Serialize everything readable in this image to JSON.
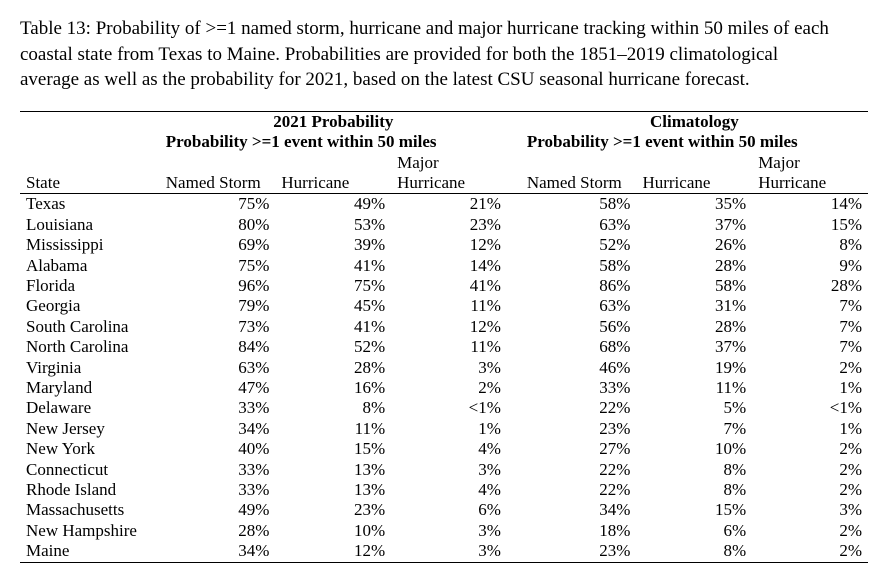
{
  "caption": "Table 13: Probability of >=1 named storm, hurricane and major hurricane tracking within 50 miles of each coastal state from Texas to Maine.  Probabilities are provided for both the 1851–2019 climatological average as well as the probability for 2021, based on the latest CSU seasonal hurricane forecast.",
  "table": {
    "type": "table",
    "font_family": "Times New Roman",
    "body_fontsize_pt": 13,
    "caption_fontsize_pt": 14,
    "background_color": "#ffffff",
    "text_color": "#000000",
    "border_color": "#000000",
    "group_headers": {
      "left": "2021 Probability",
      "right": "Climatology"
    },
    "sub_header": "Probability >=1 event within 50 miles",
    "columns": {
      "state": "State",
      "named_storm": "Named Storm",
      "hurricane": "Hurricane",
      "major_hurricane": "Major Hurricane"
    },
    "column_alignment": [
      "left",
      "right",
      "right",
      "right",
      "right",
      "right",
      "right"
    ],
    "rows": [
      {
        "state": "Texas",
        "p2021": {
          "ns": "75%",
          "h": "49%",
          "mh": "21%"
        },
        "clim": {
          "ns": "58%",
          "h": "35%",
          "mh": "14%"
        }
      },
      {
        "state": "Louisiana",
        "p2021": {
          "ns": "80%",
          "h": "53%",
          "mh": "23%"
        },
        "clim": {
          "ns": "63%",
          "h": "37%",
          "mh": "15%"
        }
      },
      {
        "state": "Mississippi",
        "p2021": {
          "ns": "69%",
          "h": "39%",
          "mh": "12%"
        },
        "clim": {
          "ns": "52%",
          "h": "26%",
          "mh": "8%"
        }
      },
      {
        "state": "Alabama",
        "p2021": {
          "ns": "75%",
          "h": "41%",
          "mh": "14%"
        },
        "clim": {
          "ns": "58%",
          "h": "28%",
          "mh": "9%"
        }
      },
      {
        "state": "Florida",
        "p2021": {
          "ns": "96%",
          "h": "75%",
          "mh": "41%"
        },
        "clim": {
          "ns": "86%",
          "h": "58%",
          "mh": "28%"
        }
      },
      {
        "state": "Georgia",
        "p2021": {
          "ns": "79%",
          "h": "45%",
          "mh": "11%"
        },
        "clim": {
          "ns": "63%",
          "h": "31%",
          "mh": "7%"
        }
      },
      {
        "state": "South Carolina",
        "p2021": {
          "ns": "73%",
          "h": "41%",
          "mh": "12%"
        },
        "clim": {
          "ns": "56%",
          "h": "28%",
          "mh": "7%"
        }
      },
      {
        "state": "North Carolina",
        "p2021": {
          "ns": "84%",
          "h": "52%",
          "mh": "11%"
        },
        "clim": {
          "ns": "68%",
          "h": "37%",
          "mh": "7%"
        }
      },
      {
        "state": "Virginia",
        "p2021": {
          "ns": "63%",
          "h": "28%",
          "mh": "3%"
        },
        "clim": {
          "ns": "46%",
          "h": "19%",
          "mh": "2%"
        }
      },
      {
        "state": "Maryland",
        "p2021": {
          "ns": "47%",
          "h": "16%",
          "mh": "2%"
        },
        "clim": {
          "ns": "33%",
          "h": "11%",
          "mh": "1%"
        }
      },
      {
        "state": "Delaware",
        "p2021": {
          "ns": "33%",
          "h": "8%",
          "mh": "<1%"
        },
        "clim": {
          "ns": "22%",
          "h": "5%",
          "mh": "<1%"
        }
      },
      {
        "state": "New Jersey",
        "p2021": {
          "ns": "34%",
          "h": "11%",
          "mh": "1%"
        },
        "clim": {
          "ns": "23%",
          "h": "7%",
          "mh": "1%"
        }
      },
      {
        "state": "New York",
        "p2021": {
          "ns": "40%",
          "h": "15%",
          "mh": "4%"
        },
        "clim": {
          "ns": "27%",
          "h": "10%",
          "mh": "2%"
        }
      },
      {
        "state": "Connecticut",
        "p2021": {
          "ns": "33%",
          "h": "13%",
          "mh": "3%"
        },
        "clim": {
          "ns": "22%",
          "h": "8%",
          "mh": "2%"
        }
      },
      {
        "state": "Rhode Island",
        "p2021": {
          "ns": "33%",
          "h": "13%",
          "mh": "4%"
        },
        "clim": {
          "ns": "22%",
          "h": "8%",
          "mh": "2%"
        }
      },
      {
        "state": "Massachusetts",
        "p2021": {
          "ns": "49%",
          "h": "23%",
          "mh": "6%"
        },
        "clim": {
          "ns": "34%",
          "h": "15%",
          "mh": "3%"
        }
      },
      {
        "state": "New Hampshire",
        "p2021": {
          "ns": "28%",
          "h": "10%",
          "mh": "3%"
        },
        "clim": {
          "ns": "18%",
          "h": "6%",
          "mh": "2%"
        }
      },
      {
        "state": "Maine",
        "p2021": {
          "ns": "34%",
          "h": "12%",
          "mh": "3%"
        },
        "clim": {
          "ns": "23%",
          "h": "8%",
          "mh": "2%"
        }
      }
    ]
  }
}
